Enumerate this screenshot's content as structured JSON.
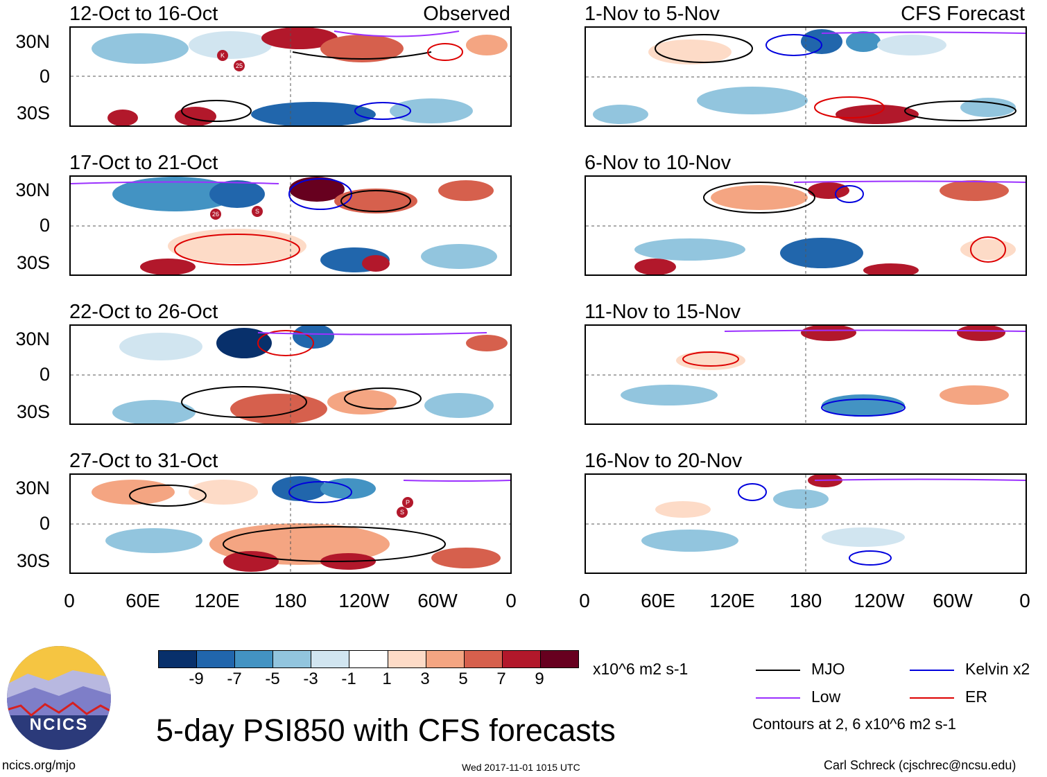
{
  "observed_label": "Observed",
  "forecast_label": "CFS Forecast",
  "panels_left": [
    {
      "title": "12-Oct to 16-Oct",
      "storm_markers": [
        "K",
        "25"
      ]
    },
    {
      "title": "17-Oct to 21-Oct",
      "storm_markers": [
        "26",
        "S"
      ]
    },
    {
      "title": "22-Oct to 26-Oct",
      "storm_markers": []
    },
    {
      "title": "27-Oct to 31-Oct",
      "storm_markers": [
        "P",
        "S"
      ]
    }
  ],
  "panels_right": [
    {
      "title": "1-Nov to 5-Nov"
    },
    {
      "title": "6-Nov to 10-Nov"
    },
    {
      "title": "11-Nov to 15-Nov"
    },
    {
      "title": "16-Nov to 20-Nov"
    }
  ],
  "lat_labels": [
    "30N",
    "0",
    "30S"
  ],
  "lon_labels": [
    "0",
    "60E",
    "120E",
    "180",
    "120W",
    "60W",
    "0"
  ],
  "colorbar": {
    "colors": [
      "#08306b",
      "#2166ac",
      "#4393c3",
      "#92c5de",
      "#d1e5f0",
      "#ffffff",
      "#fddbc7",
      "#f4a582",
      "#d6604d",
      "#b2182b",
      "#67001f"
    ],
    "tick_labels": [
      "-9",
      "-7",
      "-5",
      "-3",
      "-1",
      "1",
      "3",
      "5",
      "7",
      "9"
    ],
    "units": "x10^6 m2 s-1"
  },
  "legend": {
    "items": [
      {
        "label": "MJO",
        "color": "#000000"
      },
      {
        "label": "Kelvin x2",
        "color": "#0000dd"
      },
      {
        "label": "Low",
        "color": "#9b30ff"
      },
      {
        "label": "ER",
        "color": "#dd0000"
      }
    ],
    "contour_note": "Contours at 2, 6 x10^6 m2 s-1"
  },
  "logo_text": "NCICS",
  "main_title": "5-day PSI850 with CFS forecasts",
  "footer": {
    "url": "ncics.org/mjo",
    "timestamp": "Wed 2017-11-01 1015 UTC",
    "author": "Carl Schreck (cjschrec@ncsu.edu)"
  }
}
